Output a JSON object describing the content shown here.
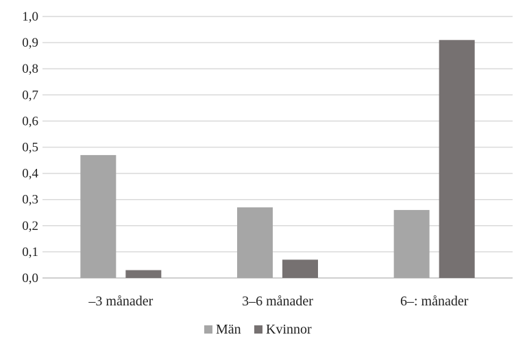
{
  "chart_data": {
    "type": "bar",
    "categories": [
      "–3 månader",
      "3–6 månader",
      "6–: månader"
    ],
    "series": [
      {
        "name": "Män",
        "values": [
          0.47,
          0.27,
          0.26
        ],
        "color": "#a6a6a6"
      },
      {
        "name": "Kvinnor",
        "values": [
          0.03,
          0.07,
          0.91
        ],
        "color": "#767171"
      }
    ],
    "ylim": [
      0,
      1.0
    ],
    "yticks": [
      "0,0",
      "0,1",
      "0,2",
      "0,3",
      "0,4",
      "0,5",
      "0,6",
      "0,7",
      "0,8",
      "0,9",
      "1,0"
    ],
    "grid": true,
    "legend_position": "bottom"
  }
}
